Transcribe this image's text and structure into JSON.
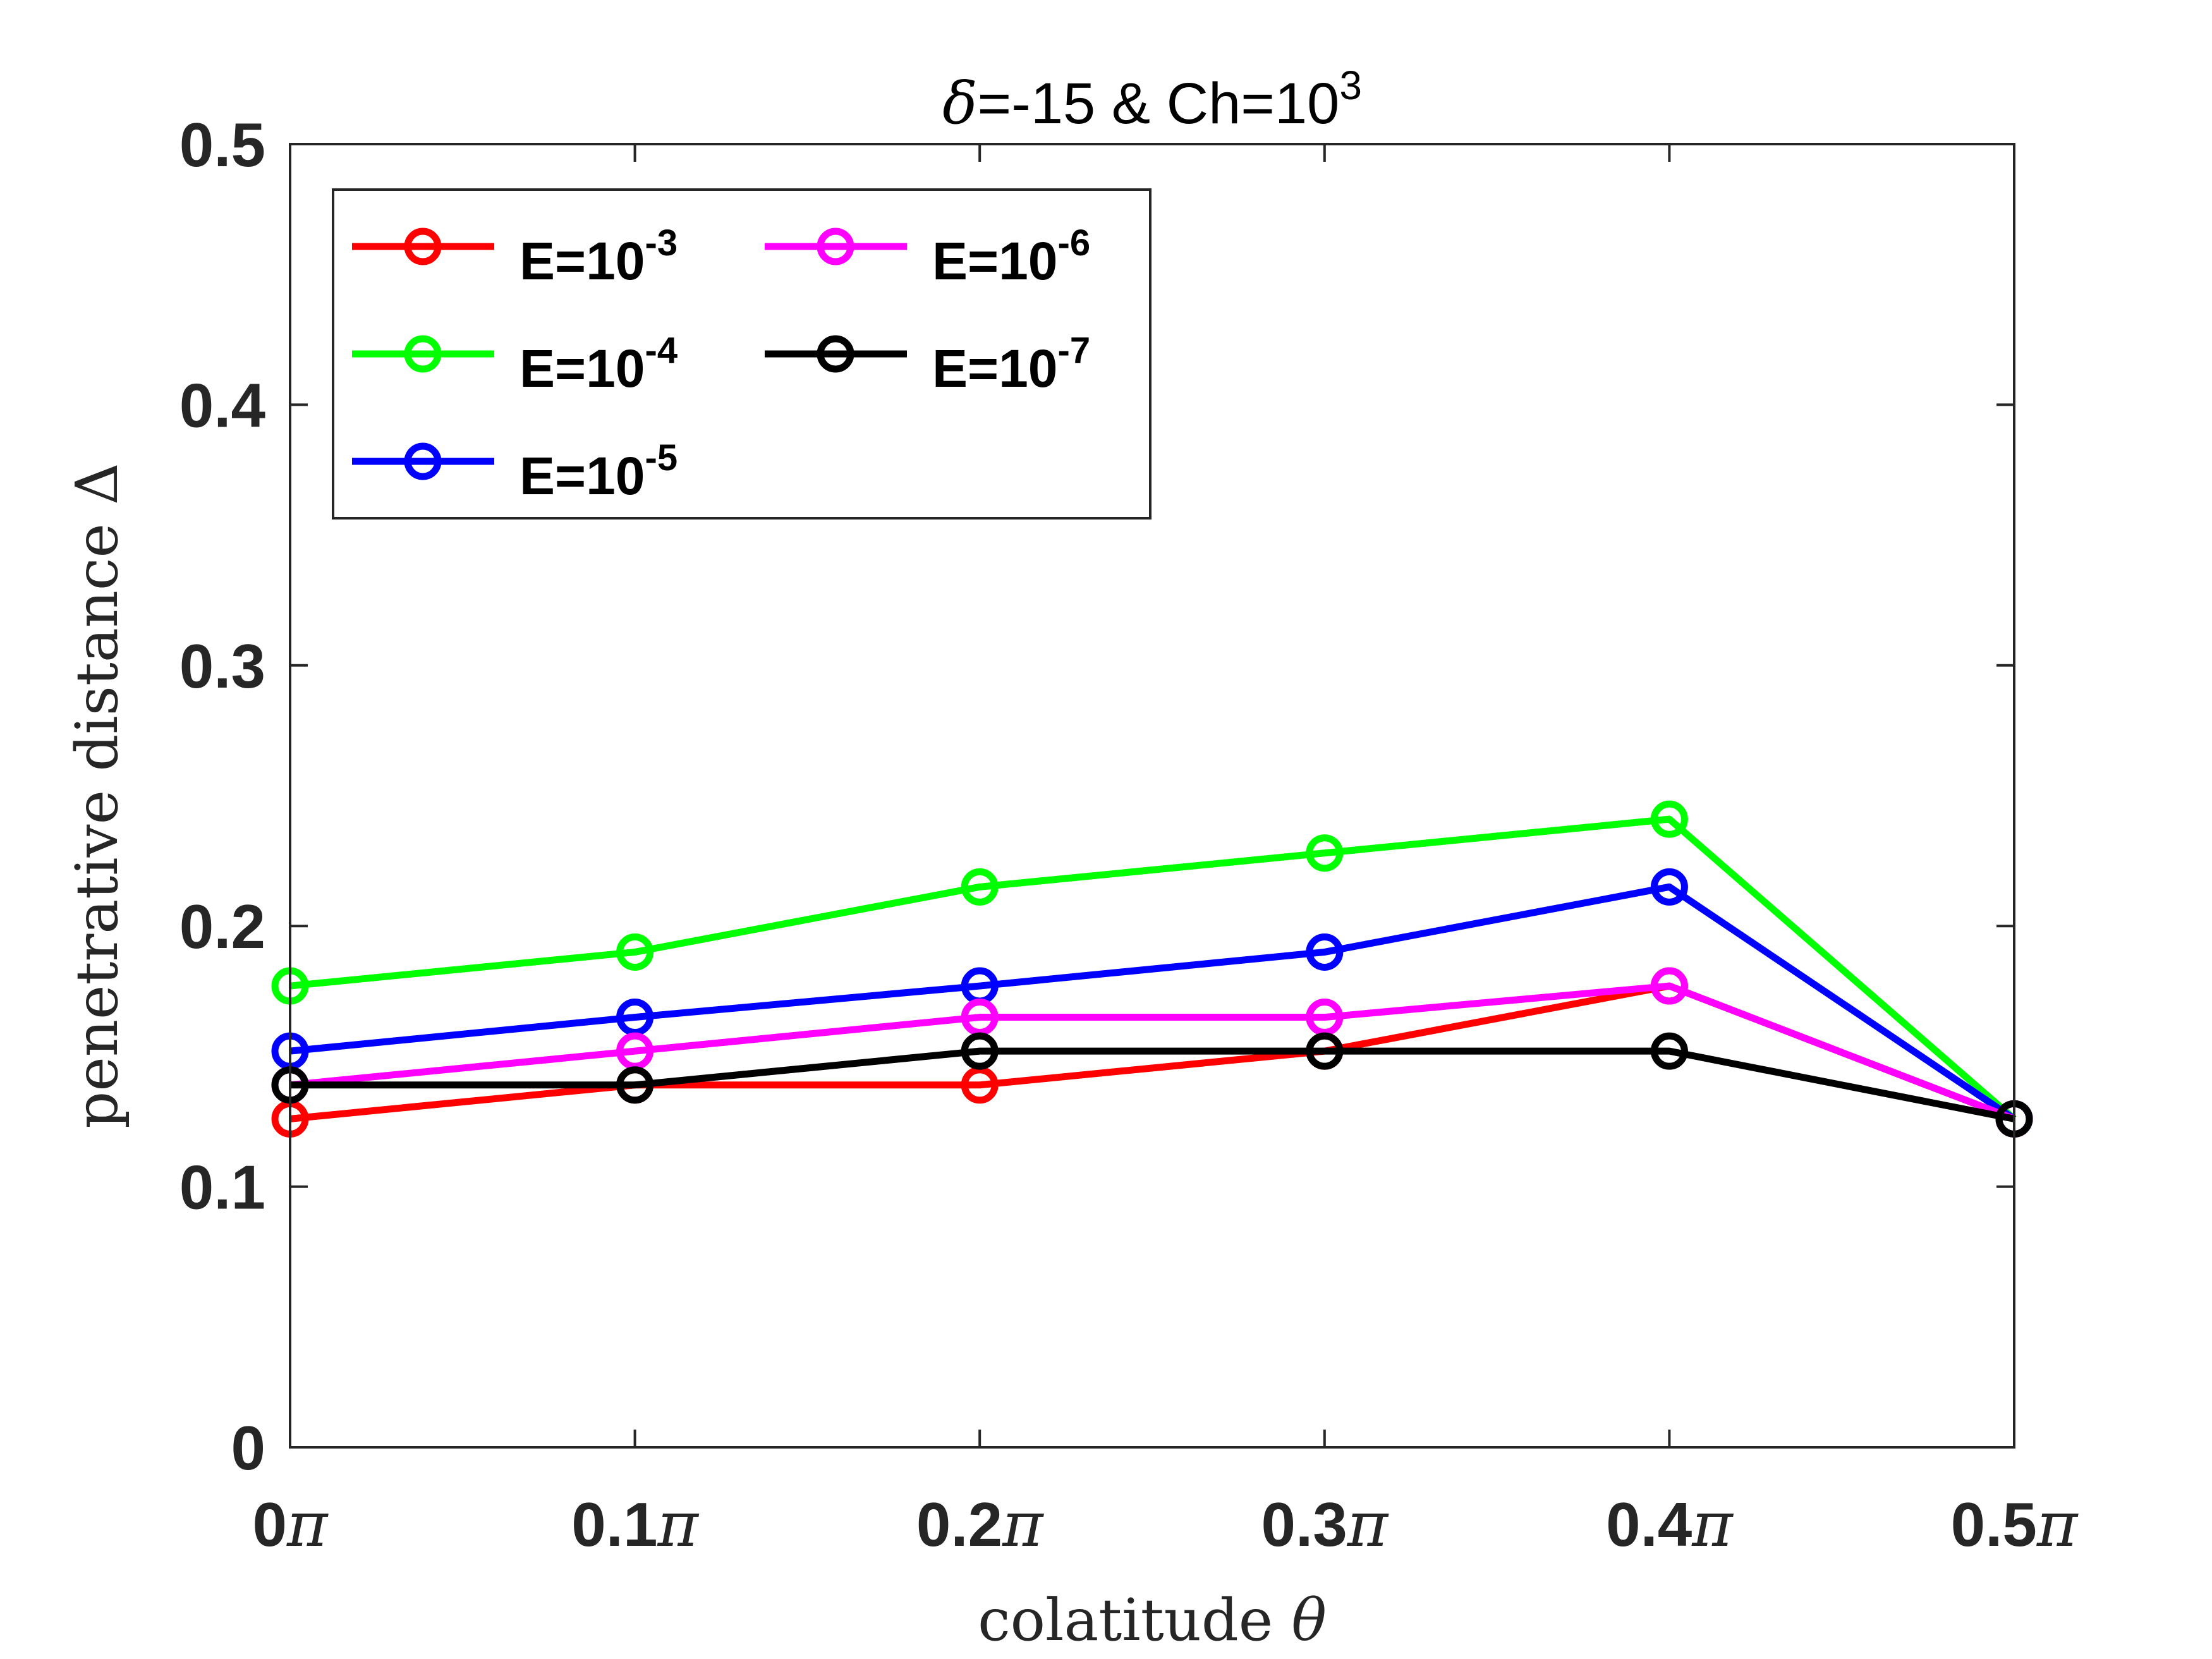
{
  "chart_data": {
    "type": "line",
    "title": {
      "delta_symbol": "δ",
      "text_main": "=-15 & Ch=10",
      "text_exp": "3"
    },
    "xlabel": {
      "text": "colatitude ",
      "symbol": "θ"
    },
    "ylabel": {
      "text": "penetrative distance ",
      "symbol": "Δ"
    },
    "x": [
      0,
      0.1,
      0.2,
      0.3,
      0.4,
      0.5
    ],
    "xlim": [
      0,
      0.5
    ],
    "ylim": [
      0,
      0.5
    ],
    "xticks": [
      {
        "value": 0,
        "num": "0",
        "sym": "π"
      },
      {
        "value": 0.1,
        "num": "0.1",
        "sym": "π"
      },
      {
        "value": 0.2,
        "num": "0.2",
        "sym": "π"
      },
      {
        "value": 0.3,
        "num": "0.3",
        "sym": "π"
      },
      {
        "value": 0.4,
        "num": "0.4",
        "sym": "π"
      },
      {
        "value": 0.5,
        "num": "0.5",
        "sym": "π"
      }
    ],
    "yticks": [
      {
        "value": 0,
        "label": "0"
      },
      {
        "value": 0.1,
        "label": "0.1"
      },
      {
        "value": 0.2,
        "label": "0.2"
      },
      {
        "value": 0.3,
        "label": "0.3"
      },
      {
        "value": 0.4,
        "label": "0.4"
      },
      {
        "value": 0.5,
        "label": "0.5"
      }
    ],
    "grid": false,
    "legend_position": "top-left",
    "series": [
      {
        "name": "E=10",
        "exp": "-3",
        "color": "#ff0000",
        "values": [
          0.126,
          0.139,
          0.139,
          0.152,
          0.177,
          0.126
        ]
      },
      {
        "name": "E=10",
        "exp": "-4",
        "color": "#00ff00",
        "values": [
          0.177,
          0.19,
          0.215,
          0.228,
          0.241,
          0.126
        ]
      },
      {
        "name": "E=10",
        "exp": "-5",
        "color": "#0000ff",
        "values": [
          0.152,
          0.165,
          0.177,
          0.19,
          0.215,
          0.126
        ]
      },
      {
        "name": "E=10",
        "exp": "-6",
        "color": "#ff00ff",
        "values": [
          0.139,
          0.152,
          0.165,
          0.165,
          0.177,
          0.126
        ]
      },
      {
        "name": "E=10",
        "exp": "-7",
        "color": "#000000",
        "values": [
          0.139,
          0.139,
          0.152,
          0.152,
          0.152,
          0.126
        ]
      }
    ]
  }
}
